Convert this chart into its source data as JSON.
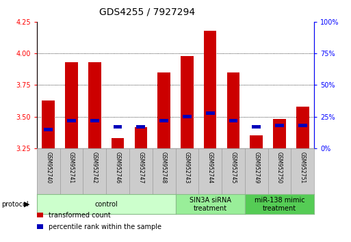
{
  "title": "GDS4255 / 7927294",
  "samples": [
    "GSM952740",
    "GSM952741",
    "GSM952742",
    "GSM952746",
    "GSM952747",
    "GSM952748",
    "GSM952743",
    "GSM952744",
    "GSM952745",
    "GSM952749",
    "GSM952750",
    "GSM952751"
  ],
  "transformed_count": [
    3.63,
    3.93,
    3.93,
    3.33,
    3.42,
    3.85,
    3.98,
    4.18,
    3.85,
    3.35,
    3.48,
    3.58
  ],
  "percentile_rank": [
    0.15,
    0.22,
    0.22,
    0.17,
    0.17,
    0.22,
    0.25,
    0.28,
    0.22,
    0.17,
    0.18,
    0.18
  ],
  "ylim_left": [
    3.25,
    4.25
  ],
  "ylim_right": [
    0.0,
    1.0
  ],
  "yticks_left": [
    3.25,
    3.5,
    3.75,
    4.0,
    4.25
  ],
  "ytick_labels_right": [
    "0%",
    "25%",
    "50%",
    "75%",
    "100%"
  ],
  "yticks_right": [
    0.0,
    0.25,
    0.5,
    0.75,
    1.0
  ],
  "bar_color": "#cc0000",
  "blue_color": "#0000bb",
  "bar_width": 0.55,
  "protocols": [
    {
      "label": "control",
      "start": 0,
      "end": 6,
      "color": "#ccffcc",
      "edge_color": "#88bb88"
    },
    {
      "label": "SIN3A siRNA\ntreatment",
      "start": 6,
      "end": 9,
      "color": "#99ee99",
      "edge_color": "#88bb88"
    },
    {
      "label": "miR-138 mimic\ntreatment",
      "start": 9,
      "end": 12,
      "color": "#55cc55",
      "edge_color": "#88bb88"
    }
  ],
  "grid_yticks": [
    3.5,
    3.75,
    4.0
  ],
  "base": 3.25,
  "legend_items": [
    {
      "label": "transformed count",
      "color": "#cc0000"
    },
    {
      "label": "percentile rank within the sample",
      "color": "#0000bb"
    }
  ],
  "protocol_label": "protocol",
  "sample_box_color": "#cccccc",
  "sample_box_edge": "#999999",
  "title_fontsize": 10,
  "tick_label_fontsize": 7,
  "legend_fontsize": 7,
  "sample_fontsize": 5.5,
  "protocol_fontsize": 7
}
